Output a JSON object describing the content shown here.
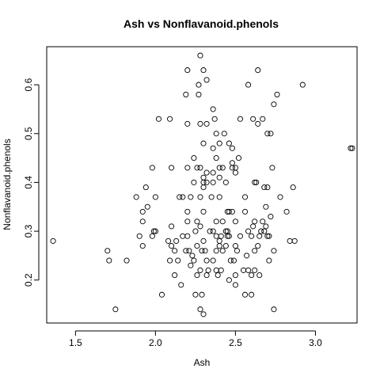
{
  "chart_data": {
    "type": "scatter",
    "title": "Ash vs Nonflavanoid.phenols",
    "xlabel": "Ash",
    "ylabel": "Nonflavanoid.phenols",
    "xlim": [
      1.32,
      3.26
    ],
    "ylim": [
      0.112,
      0.678
    ],
    "xticks": [
      1.5,
      2.0,
      2.5,
      3.0
    ],
    "xtick_labels": [
      "1.5",
      "2.0",
      "2.5",
      "3.0"
    ],
    "yticks": [
      0.2,
      0.3,
      0.4,
      0.5,
      0.6
    ],
    "ytick_labels": [
      "0.2",
      "0.3",
      "0.4",
      "0.5",
      "0.6"
    ],
    "grid": false,
    "marker": "open-circle",
    "points": [
      [
        1.36,
        0.28
      ],
      [
        1.7,
        0.26
      ],
      [
        1.71,
        0.24
      ],
      [
        1.75,
        0.14
      ],
      [
        1.82,
        0.24
      ],
      [
        1.88,
        0.37
      ],
      [
        1.9,
        0.29
      ],
      [
        1.92,
        0.27
      ],
      [
        1.92,
        0.32
      ],
      [
        1.92,
        0.34
      ],
      [
        1.94,
        0.39
      ],
      [
        1.95,
        0.35
      ],
      [
        1.98,
        0.29
      ],
      [
        1.98,
        0.43
      ],
      [
        1.99,
        0.3
      ],
      [
        2.0,
        0.3
      ],
      [
        2.0,
        0.37
      ],
      [
        2.02,
        0.53
      ],
      [
        2.04,
        0.17
      ],
      [
        2.08,
        0.28
      ],
      [
        2.09,
        0.24
      ],
      [
        2.09,
        0.53
      ],
      [
        2.1,
        0.27
      ],
      [
        2.1,
        0.31
      ],
      [
        2.1,
        0.43
      ],
      [
        2.12,
        0.21
      ],
      [
        2.12,
        0.26
      ],
      [
        2.13,
        0.28
      ],
      [
        2.14,
        0.24
      ],
      [
        2.15,
        0.37
      ],
      [
        2.16,
        0.19
      ],
      [
        2.17,
        0.29
      ],
      [
        2.17,
        0.37
      ],
      [
        2.19,
        0.26
      ],
      [
        2.19,
        0.58
      ],
      [
        2.2,
        0.29
      ],
      [
        2.2,
        0.32
      ],
      [
        2.2,
        0.34
      ],
      [
        2.2,
        0.43
      ],
      [
        2.2,
        0.52
      ],
      [
        2.2,
        0.63
      ],
      [
        2.21,
        0.26
      ],
      [
        2.22,
        0.23
      ],
      [
        2.22,
        0.37
      ],
      [
        2.23,
        0.25
      ],
      [
        2.24,
        0.24
      ],
      [
        2.24,
        0.4
      ],
      [
        2.24,
        0.45
      ],
      [
        2.25,
        0.17
      ],
      [
        2.25,
        0.3
      ],
      [
        2.26,
        0.21
      ],
      [
        2.26,
        0.27
      ],
      [
        2.26,
        0.32
      ],
      [
        2.26,
        0.43
      ],
      [
        2.27,
        0.58
      ],
      [
        2.27,
        0.6
      ],
      [
        2.28,
        0.14
      ],
      [
        2.28,
        0.22
      ],
      [
        2.28,
        0.31
      ],
      [
        2.28,
        0.37
      ],
      [
        2.28,
        0.43
      ],
      [
        2.28,
        0.52
      ],
      [
        2.28,
        0.66
      ],
      [
        2.29,
        0.17
      ],
      [
        2.29,
        0.26
      ],
      [
        2.3,
        0.28
      ],
      [
        2.3,
        0.34
      ],
      [
        2.3,
        0.39
      ],
      [
        2.3,
        0.4
      ],
      [
        2.3,
        0.41
      ],
      [
        2.3,
        0.48
      ],
      [
        2.3,
        0.63
      ],
      [
        2.3,
        0.13
      ],
      [
        2.31,
        0.26
      ],
      [
        2.32,
        0.21
      ],
      [
        2.32,
        0.24
      ],
      [
        2.32,
        0.4
      ],
      [
        2.32,
        0.42
      ],
      [
        2.32,
        0.52
      ],
      [
        2.32,
        0.61
      ],
      [
        2.33,
        0.22
      ],
      [
        2.34,
        0.3
      ],
      [
        2.35,
        0.37
      ],
      [
        2.36,
        0.24
      ],
      [
        2.36,
        0.3
      ],
      [
        2.36,
        0.4
      ],
      [
        2.36,
        0.42
      ],
      [
        2.36,
        0.47
      ],
      [
        2.36,
        0.55
      ],
      [
        2.37,
        0.53
      ],
      [
        2.38,
        0.22
      ],
      [
        2.38,
        0.26
      ],
      [
        2.38,
        0.29
      ],
      [
        2.38,
        0.32
      ],
      [
        2.38,
        0.45
      ],
      [
        2.38,
        0.5
      ],
      [
        2.39,
        0.21
      ],
      [
        2.4,
        0.27
      ],
      [
        2.4,
        0.28
      ],
      [
        2.4,
        0.37
      ],
      [
        2.4,
        0.41
      ],
      [
        2.4,
        0.43
      ],
      [
        2.4,
        0.48
      ],
      [
        2.41,
        0.22
      ],
      [
        2.41,
        0.29
      ],
      [
        2.42,
        0.26
      ],
      [
        2.42,
        0.32
      ],
      [
        2.42,
        0.43
      ],
      [
        2.43,
        0.5
      ],
      [
        2.44,
        0.27
      ],
      [
        2.44,
        0.3
      ],
      [
        2.44,
        0.4
      ],
      [
        2.45,
        0.29
      ],
      [
        2.45,
        0.3
      ],
      [
        2.45,
        0.34
      ],
      [
        2.46,
        0.2
      ],
      [
        2.46,
        0.29
      ],
      [
        2.46,
        0.34
      ],
      [
        2.46,
        0.48
      ],
      [
        2.47,
        0.24
      ],
      [
        2.48,
        0.34
      ],
      [
        2.48,
        0.43
      ],
      [
        2.48,
        0.44
      ],
      [
        2.48,
        0.47
      ],
      [
        2.49,
        0.24
      ],
      [
        2.5,
        0.19
      ],
      [
        2.5,
        0.21
      ],
      [
        2.5,
        0.27
      ],
      [
        2.5,
        0.32
      ],
      [
        2.5,
        0.42
      ],
      [
        2.5,
        0.43
      ],
      [
        2.51,
        0.26
      ],
      [
        2.52,
        0.45
      ],
      [
        2.53,
        0.29
      ],
      [
        2.53,
        0.53
      ],
      [
        2.55,
        0.22
      ],
      [
        2.56,
        0.17
      ],
      [
        2.56,
        0.34
      ],
      [
        2.56,
        0.37
      ],
      [
        2.57,
        0.25
      ],
      [
        2.58,
        0.22
      ],
      [
        2.58,
        0.3
      ],
      [
        2.58,
        0.6
      ],
      [
        2.6,
        0.17
      ],
      [
        2.6,
        0.21
      ],
      [
        2.6,
        0.29
      ],
      [
        2.61,
        0.31
      ],
      [
        2.61,
        0.53
      ],
      [
        2.62,
        0.22
      ],
      [
        2.62,
        0.26
      ],
      [
        2.62,
        0.32
      ],
      [
        2.62,
        0.4
      ],
      [
        2.63,
        0.4
      ],
      [
        2.64,
        0.27
      ],
      [
        2.64,
        0.52
      ],
      [
        2.64,
        0.63
      ],
      [
        2.65,
        0.21
      ],
      [
        2.65,
        0.29
      ],
      [
        2.66,
        0.3
      ],
      [
        2.67,
        0.32
      ],
      [
        2.67,
        0.53
      ],
      [
        2.68,
        0.3
      ],
      [
        2.68,
        0.39
      ],
      [
        2.69,
        0.31
      ],
      [
        2.69,
        0.35
      ],
      [
        2.7,
        0.29
      ],
      [
        2.7,
        0.39
      ],
      [
        2.7,
        0.5
      ],
      [
        2.71,
        0.24
      ],
      [
        2.71,
        0.29
      ],
      [
        2.72,
        0.33
      ],
      [
        2.72,
        0.5
      ],
      [
        2.73,
        0.43
      ],
      [
        2.74,
        0.14
      ],
      [
        2.74,
        0.26
      ],
      [
        2.74,
        0.56
      ],
      [
        2.76,
        0.58
      ],
      [
        2.78,
        0.37
      ],
      [
        2.82,
        0.34
      ],
      [
        2.84,
        0.28
      ],
      [
        2.86,
        0.39
      ],
      [
        2.87,
        0.28
      ],
      [
        2.92,
        0.6
      ],
      [
        3.22,
        0.47
      ],
      [
        3.23,
        0.47
      ]
    ]
  }
}
